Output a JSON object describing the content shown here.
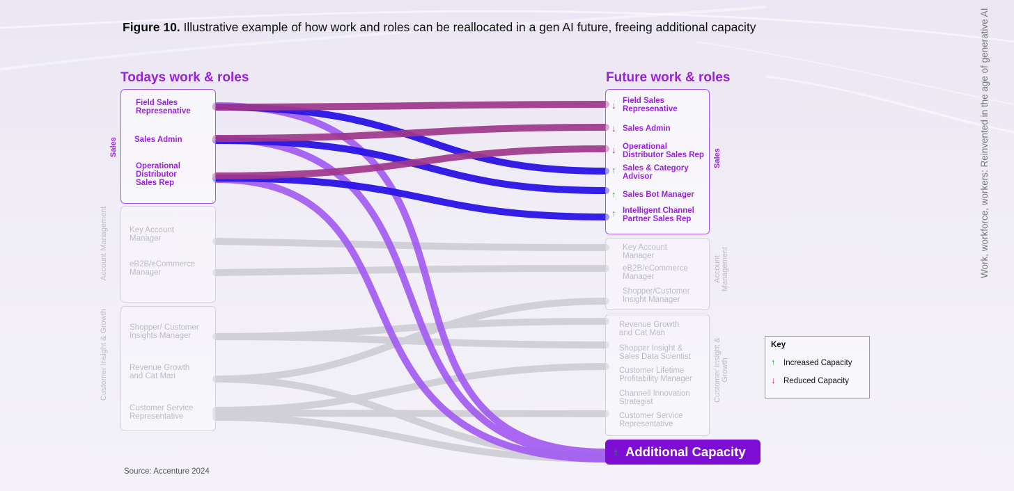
{
  "title": {
    "prefix": "Figure 10.",
    "text": "Illustrative example of how work and roles can be reallocated in a gen AI future, freeing additional capacity"
  },
  "side_note": "Work, workforce, workers: Reinvented in the age of generative AI",
  "left": {
    "heading": "Todays work & roles",
    "groups": [
      {
        "label": "Sales",
        "roles": [
          "Field Sales Represenative",
          "Sales Admin",
          "Operational Distributor Sales Rep"
        ]
      },
      {
        "label": "Account Management",
        "roles": [
          "Key Account Manager",
          "eB2B/eCommerce Manager"
        ]
      },
      {
        "label": "Customer Insight & Growth",
        "roles": [
          "Shopper/ Customer Insights Manager",
          "Revenue Growth and Cat Man",
          "Customer Service Representative"
        ]
      }
    ]
  },
  "right": {
    "heading": "Future work & roles",
    "groups": [
      {
        "label": "Sales",
        "roles": [
          {
            "name": "Field Sales Represenative",
            "change": "reduced"
          },
          {
            "name": "Sales Admin",
            "change": "reduced"
          },
          {
            "name": "Operational Distributor Sales Rep",
            "change": "reduced"
          },
          {
            "name": "Sales & Category Advisor",
            "change": "increased"
          },
          {
            "name": "Sales Bot Manager",
            "change": "increased"
          },
          {
            "name": "Intelligent Channel Partner Sales Rep",
            "change": "increased"
          }
        ]
      },
      {
        "label": "Account Management",
        "roles": [
          {
            "name": "Key Account Manager"
          },
          {
            "name": "eB2B/eCommerce Manager"
          },
          {
            "name": "Shopper/Customer Insight Manager"
          }
        ]
      },
      {
        "label": "Customer Insight & Growth",
        "roles": [
          {
            "name": "Revenue Growth and Cat Man"
          },
          {
            "name": "Shopper Insight & Sales Data Scientist"
          },
          {
            "name": "Customer Lifetime Profitability Manager"
          },
          {
            "name": "Channell Innovation Strategist"
          },
          {
            "name": "Customer Service Representative"
          }
        ]
      }
    ],
    "additional_capacity": {
      "label": "Additional Capacity",
      "change": "increased"
    }
  },
  "key": {
    "title": "Key",
    "items": [
      {
        "label": "Increased Capacity",
        "change": "increased"
      },
      {
        "label": "Reduced Capacity",
        "change": "reduced"
      }
    ]
  },
  "source": "Source: Accenture 2024",
  "colors": {
    "accent": "#9b1fe0",
    "sales_retained_flow": "#a0378c",
    "new_role_flow": "#2a14e6",
    "capacity_flow": "#a35cf2",
    "grey_flow": "#cfcdd4",
    "capacity_box": "#7f0ed4",
    "increased": "#22b04a",
    "reduced": "#e6223c"
  }
}
